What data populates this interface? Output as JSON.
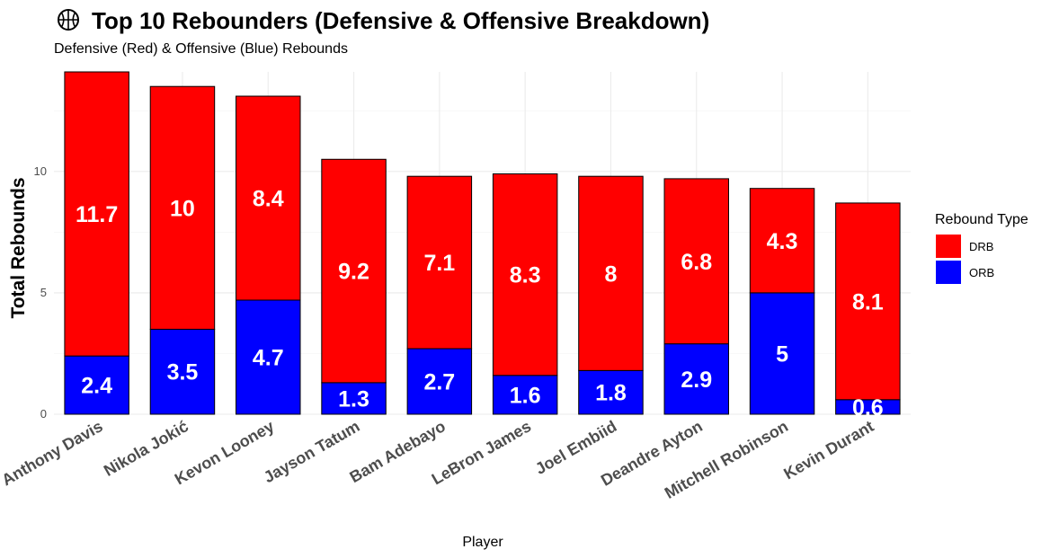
{
  "chart_data": {
    "type": "bar",
    "stacked": true,
    "title": "Top 10 Rebounders (Defensive & Offensive Breakdown)",
    "title_icon": "basketball-icon",
    "subtitle": "Defensive (Red) & Offensive (Blue) Rebounds",
    "xlabel": "Player",
    "ylabel": "Total Rebounds",
    "ylim": [
      0,
      14.1
    ],
    "yticks": [
      0,
      5,
      10
    ],
    "grid": true,
    "legend": {
      "title": "Rebound Type",
      "placement": "right"
    },
    "categories": [
      "Anthony Davis",
      "Nikola Jokić",
      "Kevon Looney",
      "Jayson Tatum",
      "Bam Adebayo",
      "LeBron James",
      "Joel Embiid",
      "Deandre Ayton",
      "Mitchell Robinson",
      "Kevin Durant"
    ],
    "series": [
      {
        "name": "ORB",
        "color": "#0000ff",
        "values": [
          2.4,
          3.5,
          4.7,
          1.3,
          2.7,
          1.6,
          1.8,
          2.9,
          5,
          0.6
        ]
      },
      {
        "name": "DRB",
        "color": "#ff0000",
        "values": [
          11.7,
          10,
          8.4,
          9.2,
          7.1,
          8.3,
          8,
          6.8,
          4.3,
          8.1
        ]
      }
    ],
    "legend_order": [
      "DRB",
      "ORB"
    ]
  }
}
